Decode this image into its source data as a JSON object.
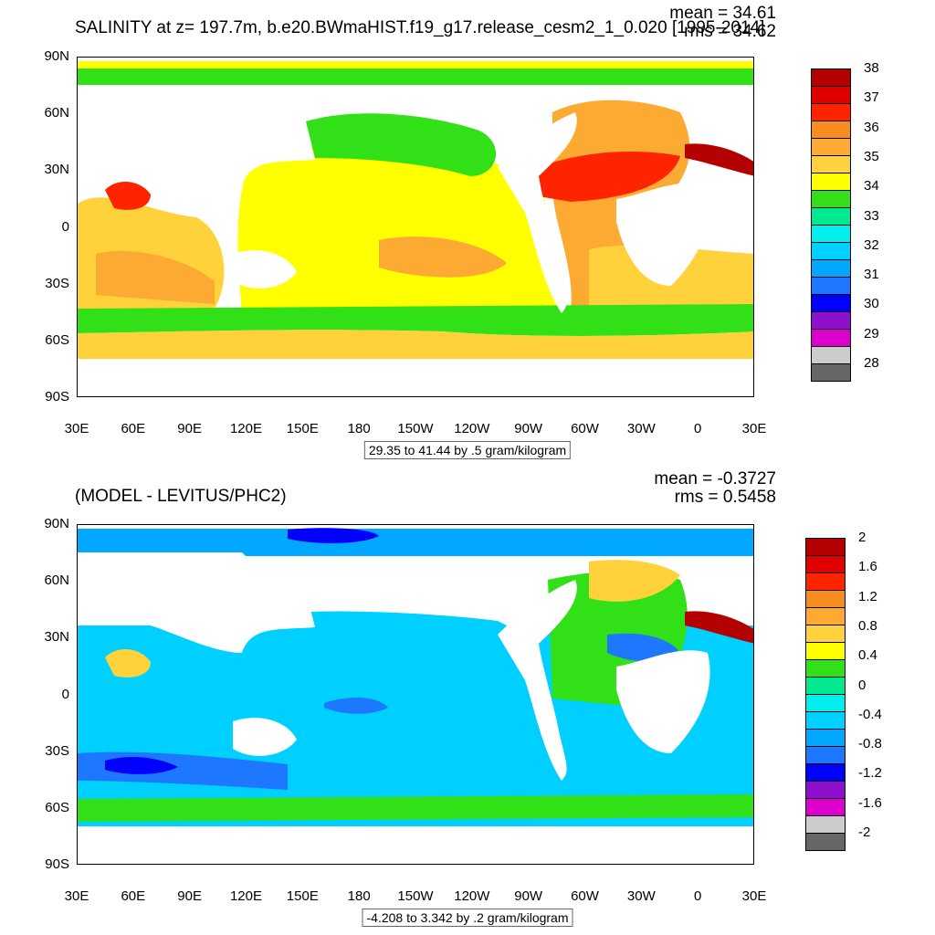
{
  "top": {
    "title": "SALINITY at z= 197.7m, b.e20.BWmaHIST.f19_g17.release_cesm2_1_0.020 [1995-2014]",
    "mean_text": "mean = 34.61",
    "rms_text": "rms = 34.62",
    "range_text": "29.35 to 41.44 by .5 gram/kilogram",
    "colorbar": {
      "colors": [
        "#666666",
        "#cccccc",
        "#dd00cc",
        "#8e10cc",
        "#0000ff",
        "#1e78ff",
        "#00a8ff",
        "#00d0ff",
        "#00f0f0",
        "#00e890",
        "#31e016",
        "#ffff00",
        "#ffd23c",
        "#fdaa32",
        "#f88c1e",
        "#ff2400",
        "#e10000",
        "#b40000"
      ],
      "labels": [
        "28",
        "29",
        "30",
        "31",
        "32",
        "33",
        "34",
        "35",
        "36",
        "37",
        "38"
      ]
    }
  },
  "bottom": {
    "title": "(MODEL - LEVITUS/PHC2)",
    "mean_text": "mean = -0.3727",
    "rms_text": "rms = 0.5458",
    "range_text": "-4.208 to 3.342 by .2 gram/kilogram",
    "colorbar": {
      "colors": [
        "#666666",
        "#cccccc",
        "#dd00cc",
        "#8e10cc",
        "#0000ff",
        "#1e78ff",
        "#00a8ff",
        "#00d0ff",
        "#00f0f0",
        "#00e890",
        "#31e016",
        "#ffff00",
        "#ffd23c",
        "#fdaa32",
        "#f88c1e",
        "#ff2400",
        "#e10000",
        "#b40000"
      ],
      "labels": [
        "-2",
        "-1.6",
        "-1.2",
        "-0.8",
        "-0.4",
        "0",
        "0.4",
        "0.8",
        "1.2",
        "1.6",
        "2"
      ]
    }
  },
  "axes": {
    "lat_labels": [
      "90N",
      "60N",
      "30N",
      "0",
      "30S",
      "60S",
      "90S"
    ],
    "lon_labels": [
      "30E",
      "60E",
      "90E",
      "120E",
      "150E",
      "180",
      "150W",
      "120W",
      "90W",
      "60W",
      "30W",
      "0",
      "30E"
    ]
  }
}
